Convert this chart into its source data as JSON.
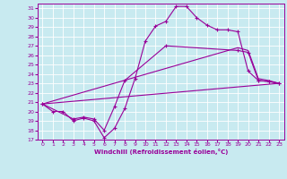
{
  "background_color": "#c8eaf0",
  "line_color": "#990099",
  "grid_color": "#ffffff",
  "xlabel": "Windchill (Refroidissement éolien,°C)",
  "xlabel_color": "#990099",
  "xlim": [
    -0.5,
    23.5
  ],
  "ylim": [
    17,
    31.5
  ],
  "yticks": [
    17,
    18,
    19,
    20,
    21,
    22,
    23,
    24,
    25,
    26,
    27,
    28,
    29,
    30,
    31
  ],
  "xticks": [
    0,
    1,
    2,
    3,
    4,
    5,
    6,
    7,
    8,
    9,
    10,
    11,
    12,
    13,
    14,
    15,
    16,
    17,
    18,
    19,
    20,
    21,
    22,
    23
  ],
  "line1_x": [
    0,
    1,
    2,
    3,
    4,
    5,
    6,
    7,
    8,
    9,
    10,
    11,
    12,
    13,
    14,
    15,
    16,
    17,
    18,
    19,
    20,
    21,
    22,
    23
  ],
  "line1_y": [
    20.8,
    20.0,
    20.0,
    19.0,
    19.3,
    19.0,
    17.2,
    18.2,
    20.3,
    23.5,
    27.5,
    29.1,
    29.6,
    31.2,
    31.2,
    30.0,
    29.2,
    28.7,
    28.7,
    28.5,
    24.3,
    23.3,
    23.2,
    23.0
  ],
  "line2_x": [
    0,
    3,
    4,
    5,
    6,
    7,
    8,
    12,
    19,
    20,
    21,
    22,
    23
  ],
  "line2_y": [
    20.8,
    19.2,
    19.4,
    19.2,
    18.0,
    20.5,
    23.3,
    27.0,
    26.5,
    26.3,
    23.3,
    23.2,
    23.0
  ],
  "line3_x": [
    0,
    23
  ],
  "line3_y": [
    20.8,
    23.0
  ],
  "line4_x": [
    0,
    19,
    20,
    21,
    22,
    23
  ],
  "line4_y": [
    20.8,
    26.8,
    26.5,
    23.5,
    23.3,
    23.0
  ]
}
